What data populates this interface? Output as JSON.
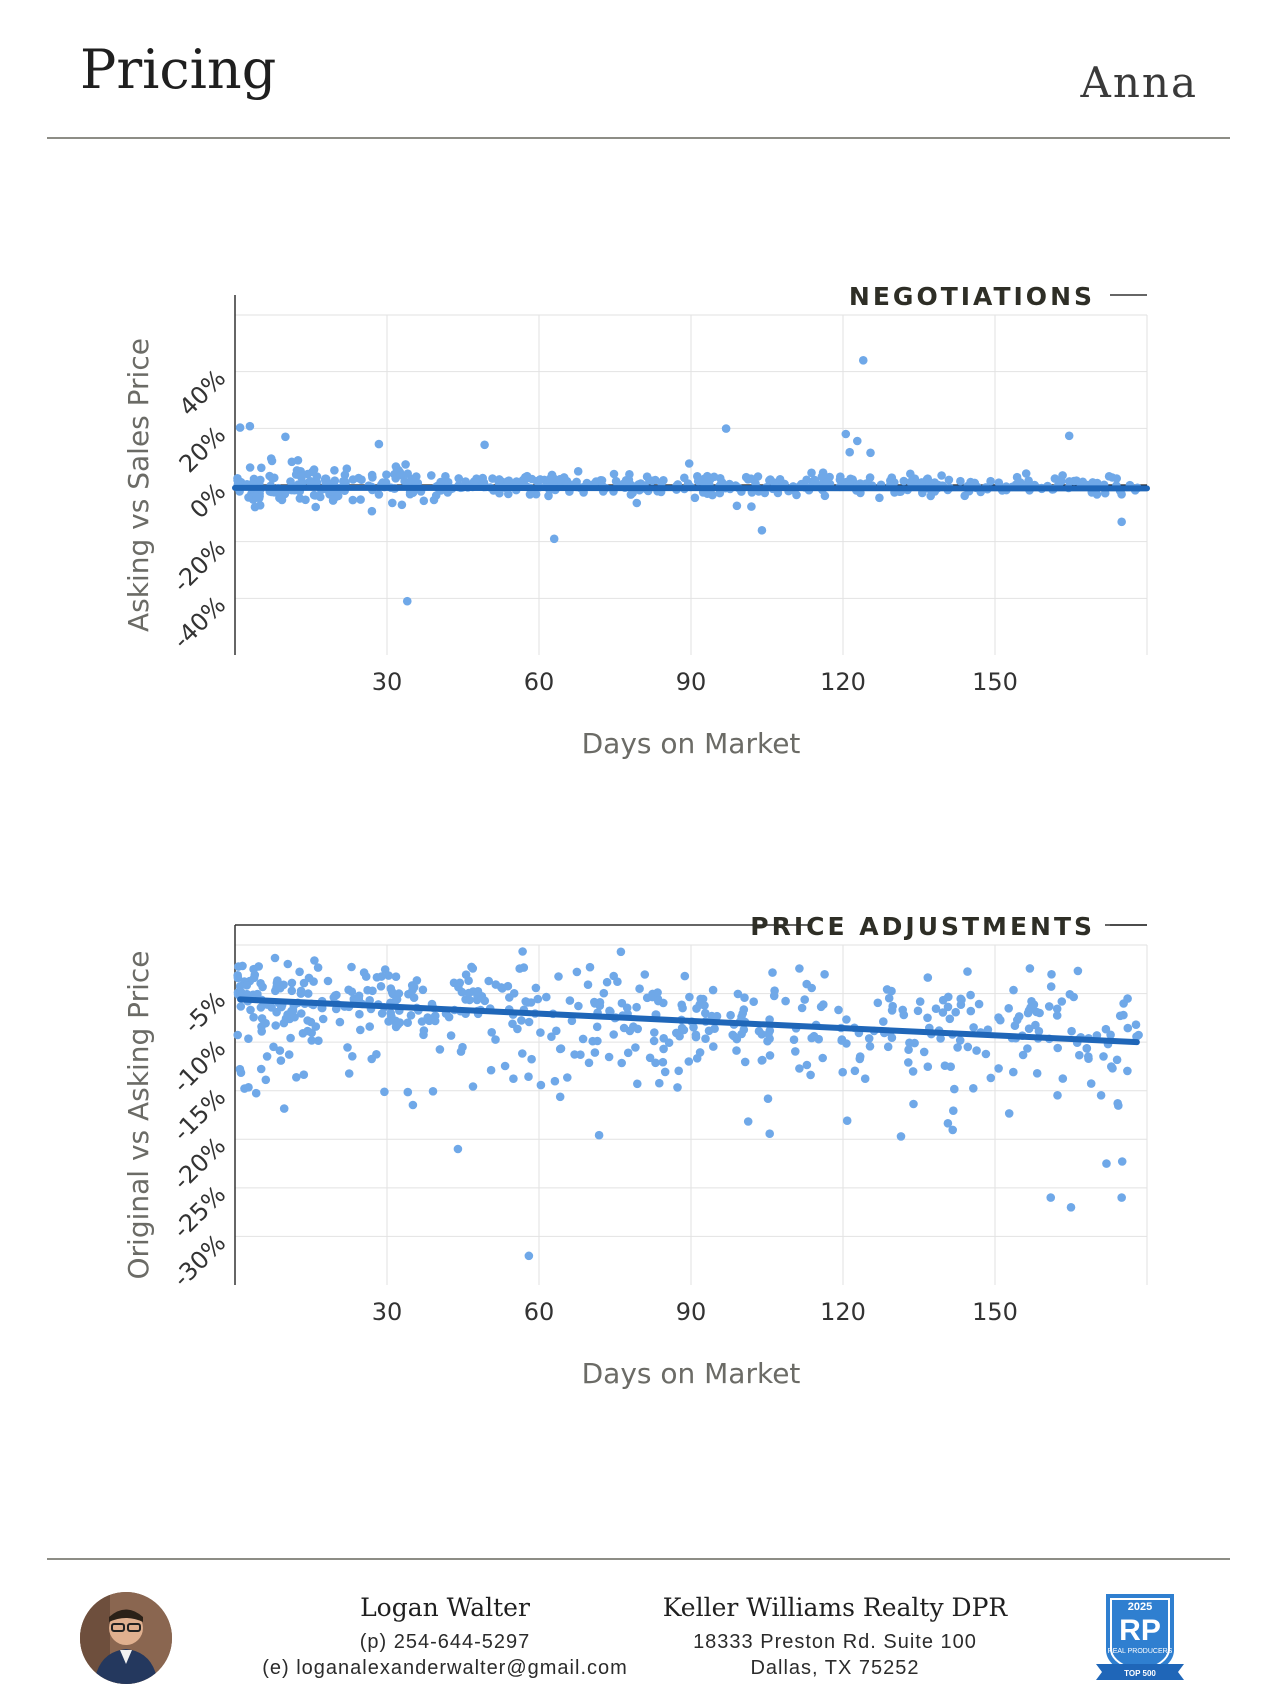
{
  "header": {
    "title": "Pricing",
    "city": "Anna"
  },
  "chart_data": [
    {
      "type": "scatter",
      "title": "NEGOTIATIONS",
      "xlabel": "Days on Market",
      "ylabel": "Asking vs Sales Price",
      "xticks": [
        "30",
        "60",
        "90",
        "120",
        "150"
      ],
      "yticks": [
        "40%",
        "20%",
        "0%",
        "-20%",
        "-40%"
      ],
      "xlim": [
        0,
        180
      ],
      "ylim": [
        -60,
        60
      ],
      "trend": {
        "x": [
          0,
          180
        ],
        "y": [
          -1.0,
          -1.2
        ]
      },
      "outliers": {
        "x": [
          124,
          34,
          63,
          104,
          175
        ],
        "y": [
          44,
          -41,
          -19,
          -16,
          -13
        ]
      },
      "grid": true
    },
    {
      "type": "scatter",
      "title": "PRICE ADJUSTMENTS",
      "xlabel": "Days on Market",
      "ylabel": "Original vs Asking Price",
      "xticks": [
        "30",
        "60",
        "90",
        "120",
        "150"
      ],
      "yticks": [
        "-5%",
        "-10%",
        "-15%",
        "-20%",
        "-25%",
        "-30%"
      ],
      "xlim": [
        0,
        180
      ],
      "ylim": [
        -35,
        0
      ],
      "trend": {
        "x": [
          1,
          178
        ],
        "y": [
          -5.6,
          -10.0
        ]
      },
      "outliers": {
        "x": [
          58,
          165,
          161,
          175,
          172,
          44
        ],
        "y": [
          -32,
          -27,
          -26,
          -26,
          -22.5,
          -21
        ]
      },
      "grid": true
    }
  ],
  "footer": {
    "agent_name": "Logan Walter",
    "phone": "(p) 254-644-5297",
    "email": "(e) loganalexanderwalter@gmail.com",
    "company": "Keller Williams Realty DPR",
    "address1": "18333 Preston Rd. Suite 100",
    "address2": "Dallas, TX 75252",
    "badge_year": "2025",
    "badge_text": "RP",
    "badge_caption": "REAL PRODUCERS",
    "badge_rank": "TOP 500"
  },
  "colors": {
    "dots": "#6fa8e8",
    "trend": "#1f66b8",
    "text": "#6b6b66",
    "title": "#2e2e26"
  }
}
